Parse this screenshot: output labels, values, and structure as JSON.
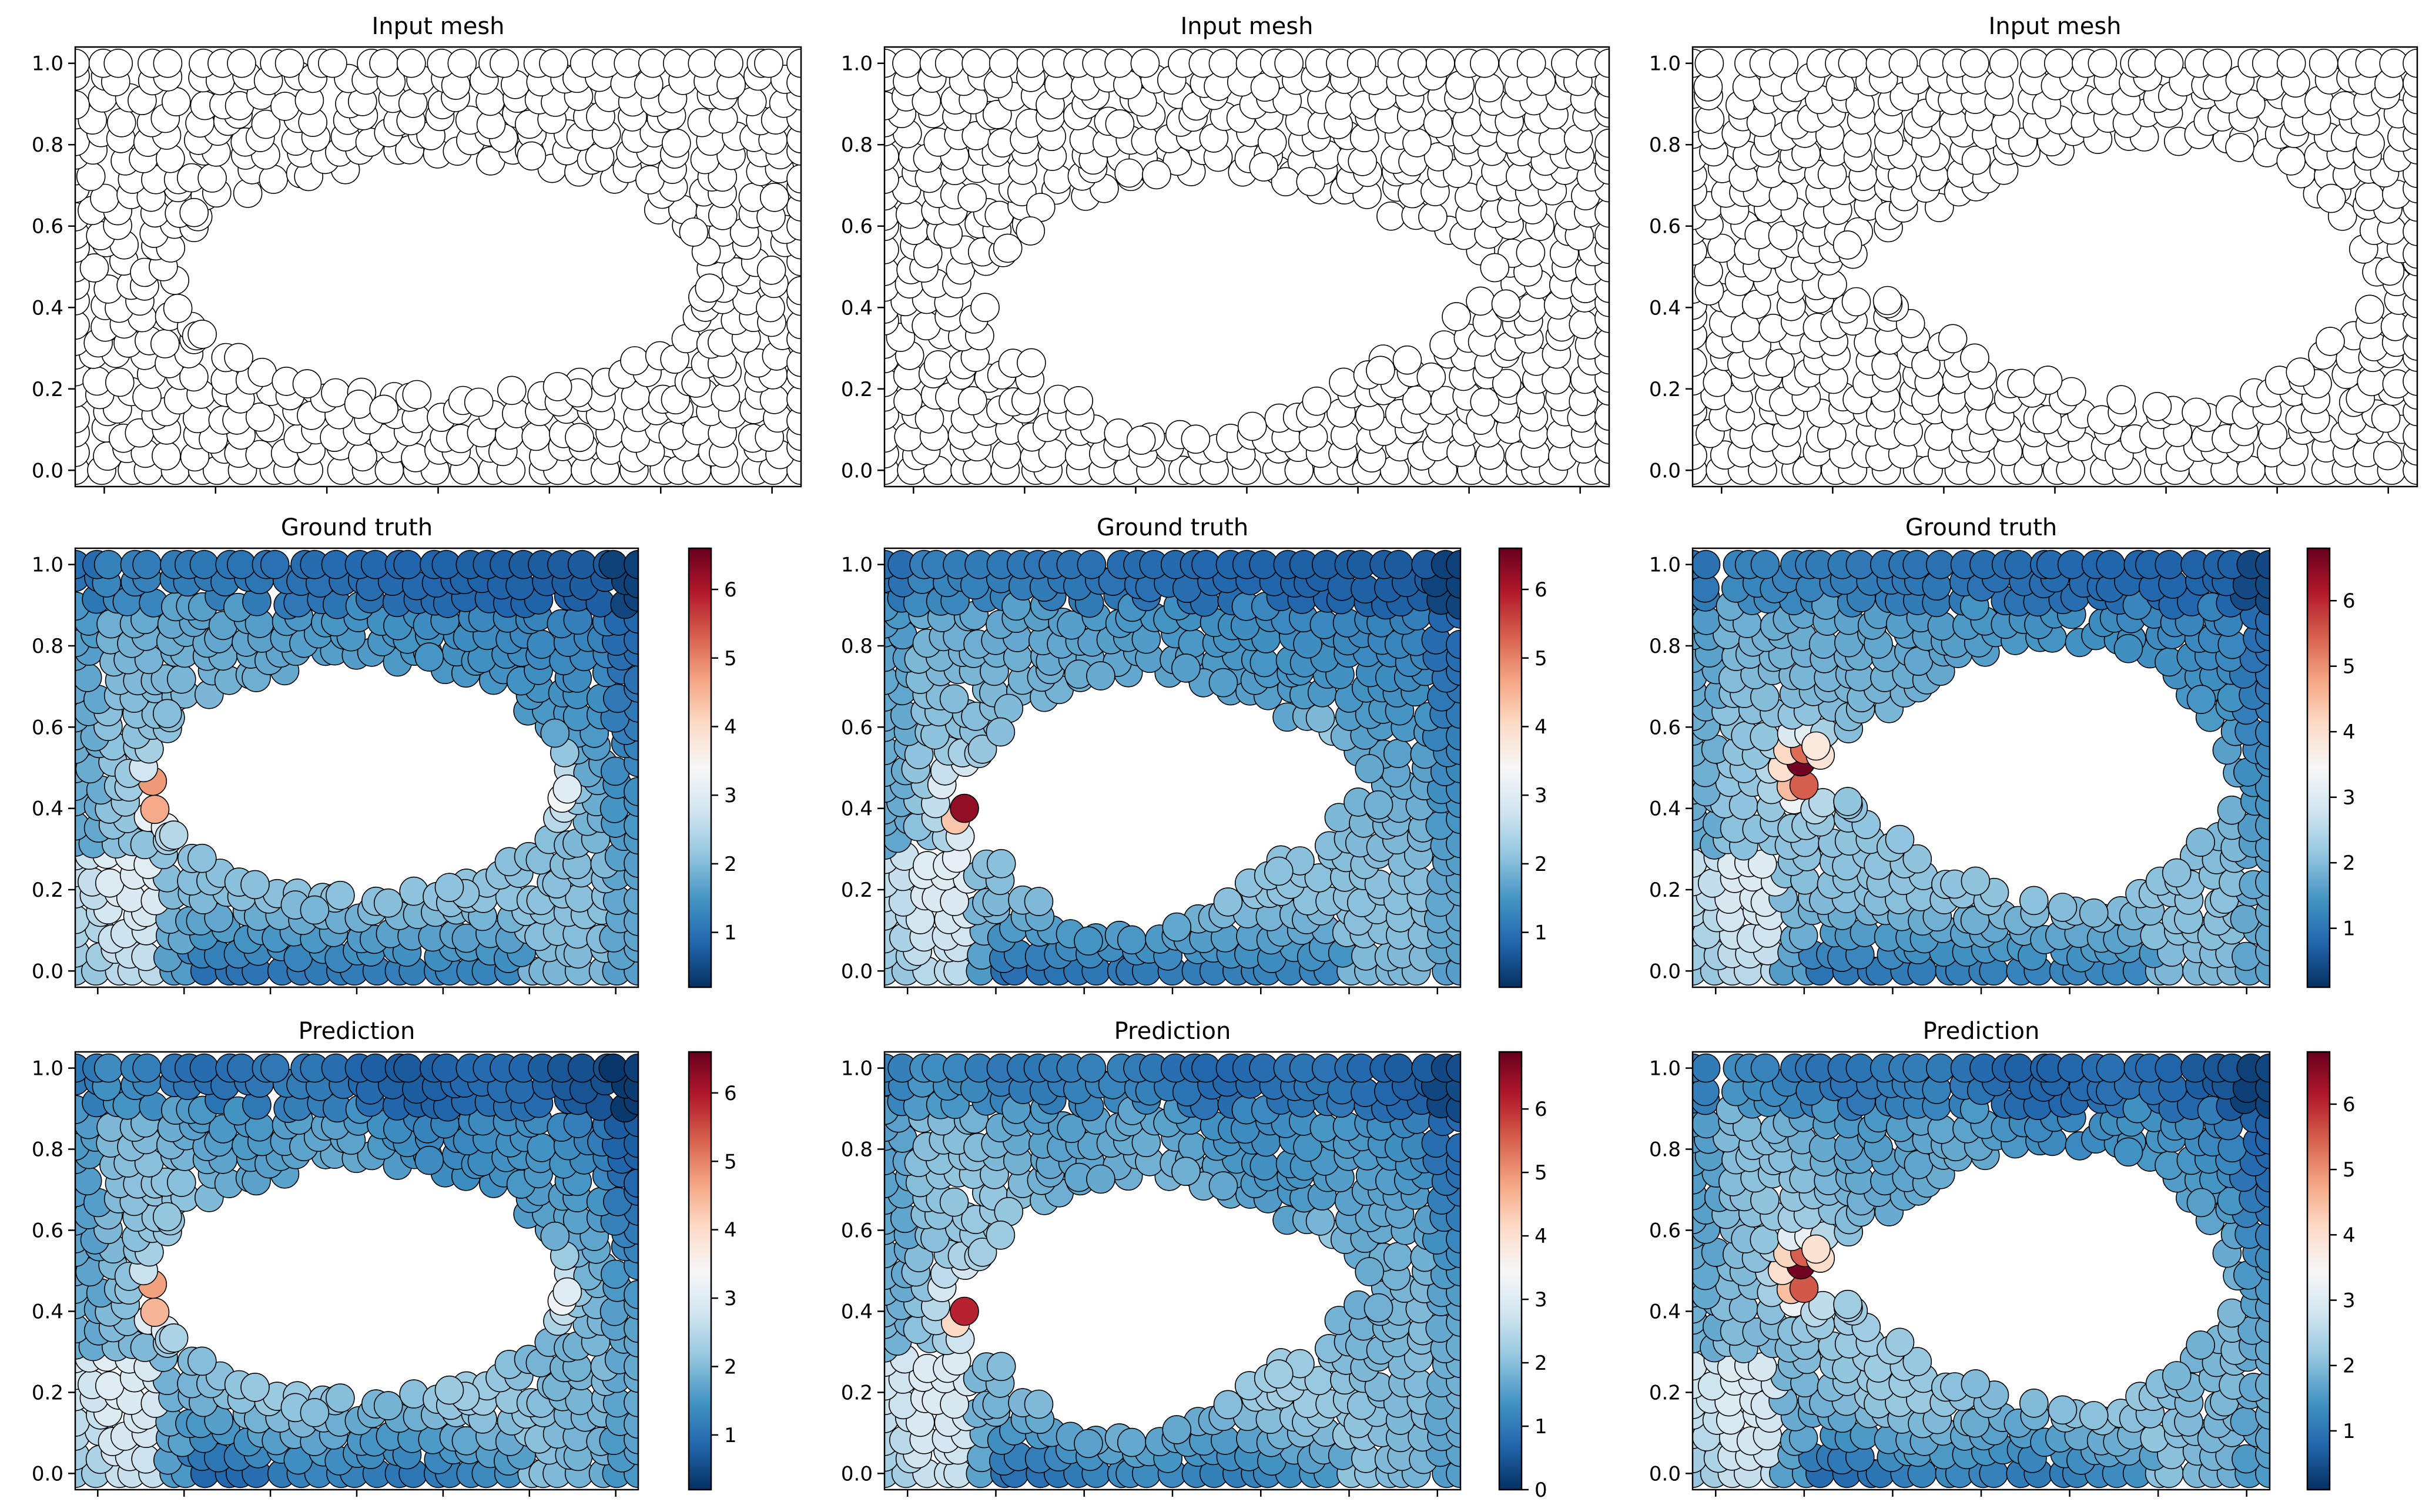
{
  "figure": {
    "rows": 3,
    "cols": 3,
    "colormap": "RdBu_r",
    "marker_edge_color": "#000000",
    "empty_marker_color": "#ffffff"
  },
  "chart_data": [
    {
      "type": "scatter",
      "title": "Input mesh",
      "row": 0,
      "col": 0,
      "case": 0,
      "field": "none",
      "xlim": [
        0,
        2
      ],
      "ylim": [
        -0.04,
        1.04
      ],
      "yticks": [
        "0.0",
        "0.2",
        "0.4",
        "0.6",
        "0.8",
        "1.0"
      ],
      "hole": {
        "shape": "ellipse",
        "cx": 1.0,
        "cy": 0.47,
        "rx": 0.72,
        "ry": 0.27,
        "rows": [
          [
            0.13,
            0.4
          ],
          [
            0.12,
            0.1
          ],
          [
            0.09,
            0.4
          ],
          [
            -0.08,
            0.35
          ],
          [
            -0.12,
            0.2
          ]
        ]
      },
      "colorbar": null
    },
    {
      "type": "scatter",
      "title": "Input mesh",
      "row": 0,
      "col": 1,
      "case": 1,
      "field": "none",
      "xlim": [
        0,
        2
      ],
      "ylim": [
        -0.04,
        1.04
      ],
      "yticks": [
        "0.0",
        "0.2",
        "0.4",
        "0.6",
        "0.8",
        "1.0"
      ],
      "hole": {
        "shape": "warped",
        "cx": 1.0,
        "cy": 0.44,
        "rx": 0.78,
        "ry": 0.33
      },
      "colorbar": null
    },
    {
      "type": "scatter",
      "title": "Input mesh",
      "row": 0,
      "col": 2,
      "case": 2,
      "field": "none",
      "xlim": [
        0,
        2
      ],
      "ylim": [
        -0.04,
        1.04
      ],
      "yticks": [
        "0.0",
        "0.2",
        "0.4",
        "0.6",
        "0.8",
        "1.0"
      ],
      "hole": {
        "shape": "teardrop",
        "cx": 1.1,
        "cy": 0.5,
        "rx": 0.75,
        "ry": 0.42
      },
      "colorbar": null
    },
    {
      "type": "scatter",
      "title": "Ground truth",
      "row": 1,
      "col": 0,
      "case": 0,
      "field": "truth",
      "xlim": [
        0,
        2
      ],
      "ylim": [
        -0.04,
        1.04
      ],
      "yticks": [
        "0.0",
        "0.2",
        "0.4",
        "0.6",
        "0.8",
        "1.0"
      ],
      "colorbar": {
        "min": 0.2,
        "max": 6.6,
        "ticks": [
          "1",
          "2",
          "3",
          "4",
          "5",
          "6"
        ]
      }
    },
    {
      "type": "scatter",
      "title": "Ground truth",
      "row": 1,
      "col": 1,
      "case": 1,
      "field": "truth",
      "xlim": [
        0,
        2
      ],
      "ylim": [
        -0.04,
        1.04
      ],
      "yticks": [
        "0.0",
        "0.2",
        "0.4",
        "0.6",
        "0.8",
        "1.0"
      ],
      "colorbar": {
        "min": 0.2,
        "max": 6.6,
        "ticks": [
          "1",
          "2",
          "3",
          "4",
          "5",
          "6"
        ]
      }
    },
    {
      "type": "scatter",
      "title": "Ground truth",
      "row": 1,
      "col": 2,
      "case": 2,
      "field": "truth",
      "xlim": [
        0,
        2
      ],
      "ylim": [
        -0.04,
        1.04
      ],
      "yticks": [
        "0.0",
        "0.2",
        "0.4",
        "0.6",
        "0.8",
        "1.0"
      ],
      "colorbar": {
        "min": 0.1,
        "max": 6.8,
        "ticks": [
          "1",
          "2",
          "3",
          "4",
          "5",
          "6"
        ]
      }
    },
    {
      "type": "scatter",
      "title": "Prediction",
      "row": 2,
      "col": 0,
      "case": 0,
      "field": "pred",
      "xlim": [
        0,
        2
      ],
      "ylim": [
        -0.04,
        1.04
      ],
      "yticks": [
        "0.0",
        "0.2",
        "0.4",
        "0.6",
        "0.8",
        "1.0"
      ],
      "colorbar": {
        "min": 0.2,
        "max": 6.6,
        "ticks": [
          "1",
          "2",
          "3",
          "4",
          "5",
          "6"
        ]
      }
    },
    {
      "type": "scatter",
      "title": "Prediction",
      "row": 2,
      "col": 1,
      "case": 1,
      "field": "pred",
      "xlim": [
        0,
        2
      ],
      "ylim": [
        -0.04,
        1.04
      ],
      "yticks": [
        "0.0",
        "0.2",
        "0.4",
        "0.6",
        "0.8",
        "1.0"
      ],
      "colorbar": {
        "min": 0.0,
        "max": 6.9,
        "ticks": [
          "0",
          "1",
          "2",
          "3",
          "4",
          "5",
          "6"
        ]
      }
    },
    {
      "type": "scatter",
      "title": "Prediction",
      "row": 2,
      "col": 2,
      "case": 2,
      "field": "pred",
      "xlim": [
        0,
        2
      ],
      "ylim": [
        -0.04,
        1.04
      ],
      "yticks": [
        "0.0",
        "0.2",
        "0.4",
        "0.6",
        "0.8",
        "1.0"
      ],
      "colorbar": {
        "min": 0.1,
        "max": 6.8,
        "ticks": [
          "1",
          "2",
          "3",
          "4",
          "5",
          "6"
        ]
      }
    }
  ]
}
